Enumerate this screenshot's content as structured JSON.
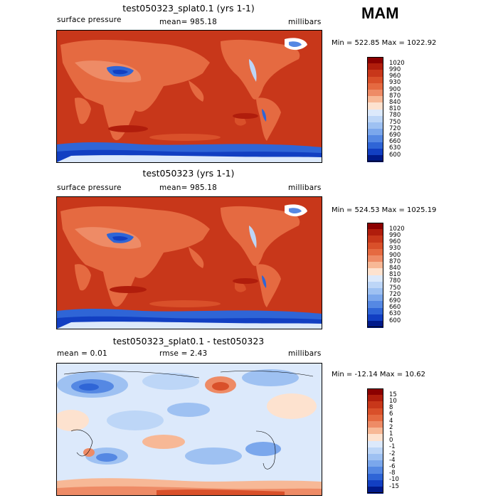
{
  "season": "MAM",
  "panels": [
    {
      "title": "test050323_splat0.1 (yrs 1-1)",
      "left_label": "surface pressure",
      "center_label": "mean= 985.18",
      "right_label": "millibars",
      "minmax": "Min = 522.85 Max = 1022.92"
    },
    {
      "title": "test050323 (yrs 1-1)",
      "left_label": "surface pressure",
      "center_label": "mean= 985.18",
      "right_label": "millibars",
      "minmax": "Min = 524.53 Max = 1025.19"
    },
    {
      "title": "test050323_splat0.1 - test050323",
      "left_label": "mean =    0.01",
      "center_label": "rmse =    2.43",
      "right_label": "millibars",
      "minmax": "Min = -12.14 Max =  10.62"
    }
  ],
  "colorbars": {
    "pressure": {
      "levels": [
        "1020",
        "990",
        "960",
        "930",
        "900",
        "870",
        "840",
        "810",
        "780",
        "750",
        "720",
        "690",
        "660",
        "630",
        "600"
      ],
      "colors": [
        "#8b0000",
        "#b01d0c",
        "#c8371a",
        "#d9502a",
        "#e56a41",
        "#ee8b66",
        "#f7b896",
        "#fde2cf",
        "#dce9fb",
        "#bdd6f7",
        "#9ec1f2",
        "#7ba7ec",
        "#5588e3",
        "#2f65d6",
        "#123fc2",
        "#001a8a"
      ]
    },
    "difference": {
      "levels": [
        "15",
        "10",
        "8",
        "6",
        "4",
        "2",
        "1",
        "0",
        "-1",
        "-2",
        "-4",
        "-6",
        "-8",
        "-10",
        "-15"
      ],
      "colors": [
        "#8b0000",
        "#b01d0c",
        "#c8371a",
        "#d9502a",
        "#e56a41",
        "#ee8b66",
        "#f7b896",
        "#fde2cf",
        "#dce9fb",
        "#bdd6f7",
        "#9ec1f2",
        "#7ba7ec",
        "#5588e3",
        "#2f65d6",
        "#123fc2",
        "#001a8a"
      ]
    }
  },
  "chart_data": [
    {
      "type": "heatmap",
      "title": "test050323_splat0.1 (yrs 1-1)",
      "variable": "surface pressure",
      "units": "millibars",
      "mean": 985.18,
      "min": 522.85,
      "max": 1022.92,
      "contour_levels": [
        600,
        630,
        660,
        690,
        720,
        750,
        780,
        810,
        840,
        870,
        900,
        930,
        960,
        990,
        1020
      ]
    },
    {
      "type": "heatmap",
      "title": "test050323 (yrs 1-1)",
      "variable": "surface pressure",
      "units": "millibars",
      "mean": 985.18,
      "min": 524.53,
      "max": 1025.19,
      "contour_levels": [
        600,
        630,
        660,
        690,
        720,
        750,
        780,
        810,
        840,
        870,
        900,
        930,
        960,
        990,
        1020
      ]
    },
    {
      "type": "heatmap",
      "title": "test050323_splat0.1 - test050323",
      "units": "millibars",
      "mean": 0.01,
      "rmse": 2.43,
      "min": -12.14,
      "max": 10.62,
      "contour_levels": [
        -15,
        -10,
        -8,
        -6,
        -4,
        -2,
        -1,
        0,
        1,
        2,
        4,
        6,
        8,
        10,
        15
      ]
    }
  ]
}
